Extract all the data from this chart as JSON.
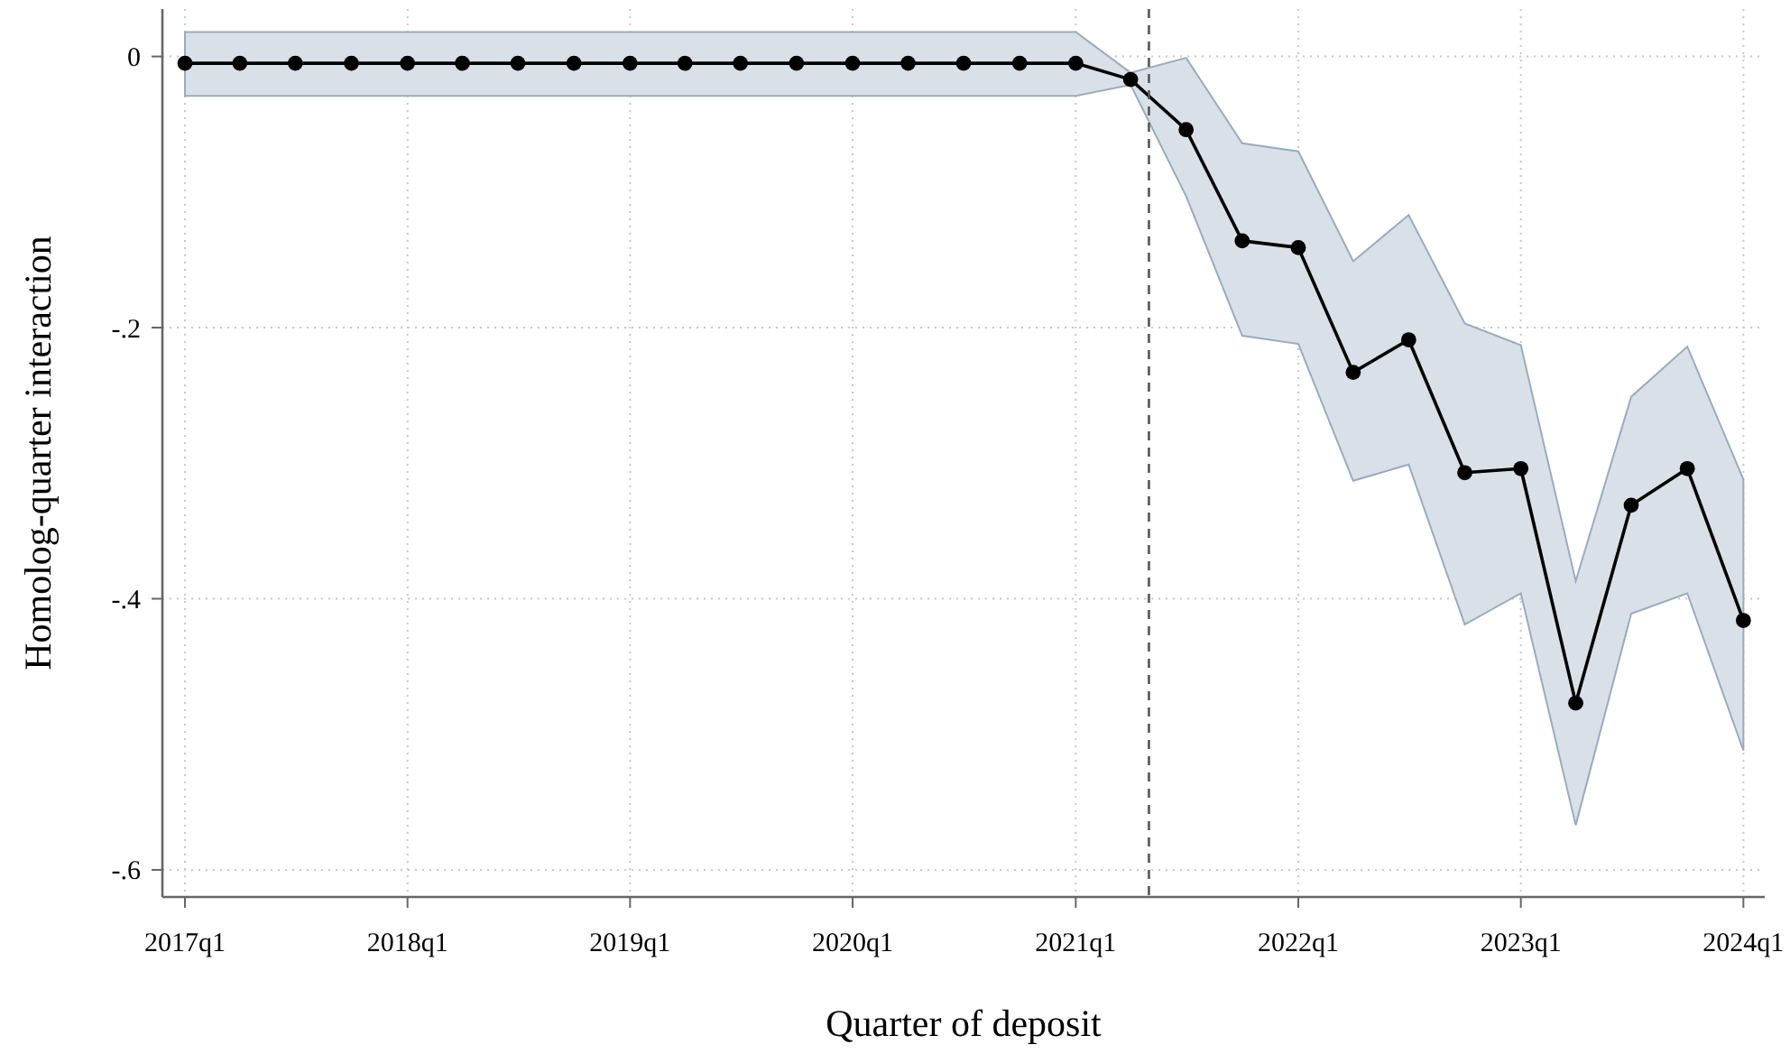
{
  "chart_data": {
    "type": "line",
    "xlabel": "Quarter of deposit",
    "ylabel": "Homolog-quarter interaction",
    "x": [
      "2017-01",
      "2017-04",
      "2017-07",
      "2017-10",
      "2018-01",
      "2018-04",
      "2018-07",
      "2018-10",
      "2019-01",
      "2019-04",
      "2019-07",
      "2019-10",
      "2020-01",
      "2020-04",
      "2020-07",
      "2020-10",
      "2021-01",
      "2021-04",
      "2021-07",
      "2021-10",
      "2022-01",
      "2022-04",
      "2022-07",
      "2022-10",
      "2023-01",
      "2023-04",
      "2023-07",
      "2023-10",
      "2024-01"
    ],
    "series": [
      {
        "color": "#000000",
        "values": [
          -0.005,
          -0.005,
          -0.005,
          -0.005,
          -0.005,
          -0.005,
          -0.005,
          -0.005,
          -0.005,
          -0.005,
          -0.005,
          -0.005,
          -0.005,
          -0.005,
          -0.005,
          -0.005,
          -0.005,
          -0.017,
          -0.054,
          -0.136,
          -0.141,
          -0.233,
          -0.209,
          -0.307,
          -0.304,
          -0.477,
          -0.331,
          -0.304,
          -0.416
        ],
        "upper": [
          0.018,
          0.018,
          0.018,
          0.018,
          0.018,
          0.018,
          0.018,
          0.018,
          0.018,
          0.018,
          0.018,
          0.018,
          0.018,
          0.018,
          0.018,
          0.018,
          0.018,
          -0.012,
          -0.001,
          -0.064,
          -0.07,
          -0.151,
          -0.117,
          -0.197,
          -0.213,
          -0.387,
          -0.251,
          -0.214,
          -0.312
        ],
        "lower": [
          -0.029,
          -0.029,
          -0.029,
          -0.029,
          -0.029,
          -0.029,
          -0.029,
          -0.029,
          -0.029,
          -0.029,
          -0.029,
          -0.029,
          -0.029,
          -0.029,
          -0.029,
          -0.029,
          -0.029,
          -0.021,
          -0.103,
          -0.206,
          -0.212,
          -0.313,
          -0.301,
          -0.419,
          -0.396,
          -0.567,
          -0.411,
          -0.396,
          -0.512
        ]
      }
    ],
    "xlim": [
      "2016-11-25",
      "2024-02-05"
    ],
    "xticks": [
      {
        "value": "2017-01",
        "label": "2017q1"
      },
      {
        "value": "2018-01",
        "label": "2018q1"
      },
      {
        "value": "2019-01",
        "label": "2019q1"
      },
      {
        "value": "2020-01",
        "label": "2020q1"
      },
      {
        "value": "2021-01",
        "label": "2021q1"
      },
      {
        "value": "2022-01",
        "label": "2022q1"
      },
      {
        "value": "2023-01",
        "label": "2023q1"
      },
      {
        "value": "2024-01",
        "label": "2024q1"
      }
    ],
    "ylim": [
      -0.62,
      0.035
    ],
    "yticks": [
      {
        "value": 0,
        "label": "0"
      },
      {
        "value": -0.2,
        "label": "-.2"
      },
      {
        "value": -0.4,
        "label": "-.4"
      },
      {
        "value": -0.6,
        "label": "-.6"
      }
    ],
    "ref_lines": [
      {
        "axis": "x",
        "value": "2021-05-01",
        "color": "#555555",
        "line_style": "dashed"
      }
    ],
    "grid": true,
    "marker": "circle",
    "line_style": "solid"
  }
}
